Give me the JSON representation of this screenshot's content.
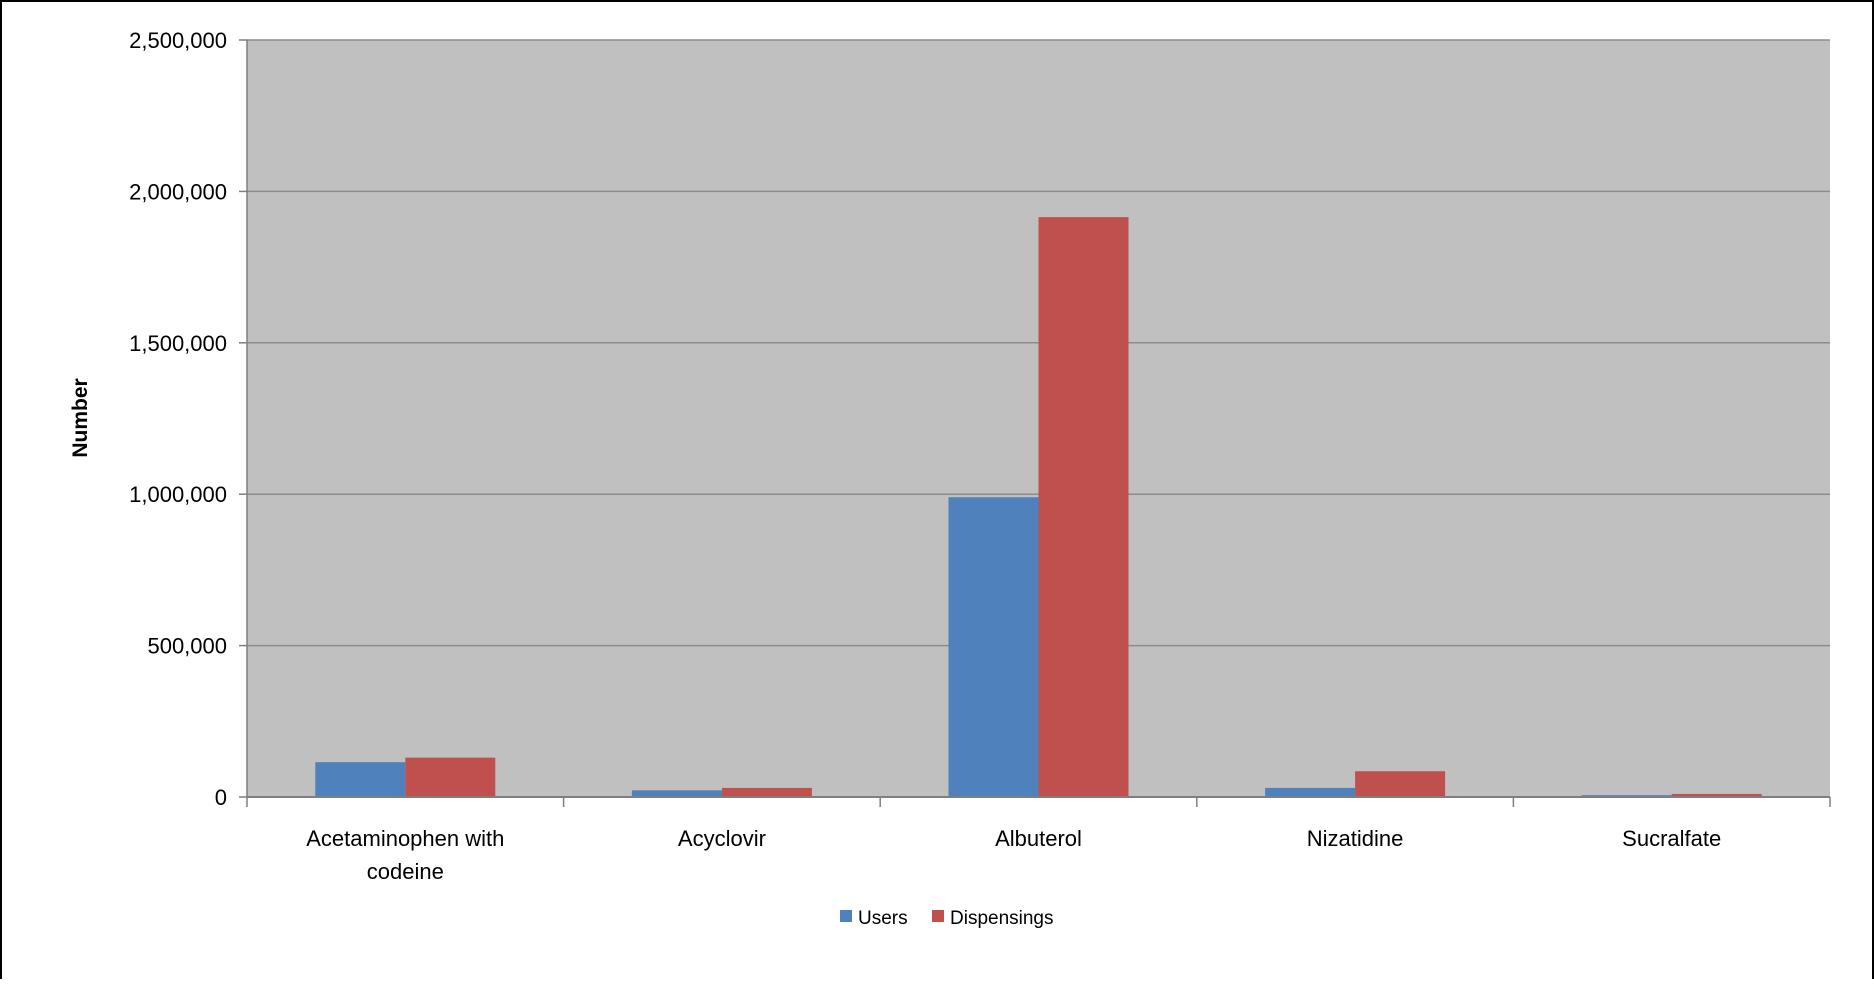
{
  "chart_data": {
    "type": "bar",
    "title": "",
    "xlabel": "",
    "ylabel": "Number",
    "ylim": [
      0,
      2500000
    ],
    "yticks": [
      0,
      500000,
      1000000,
      1500000,
      2000000,
      2500000
    ],
    "ytick_labels": [
      "0",
      "500,000",
      "1,000,000",
      "1,500,000",
      "2,000,000",
      "2,500,000"
    ],
    "categories": [
      [
        "Acetaminophen with",
        "codeine"
      ],
      [
        "Acyclovir"
      ],
      [
        "Albuterol"
      ],
      [
        "Nizatidine"
      ],
      [
        "Sucralfate"
      ]
    ],
    "series": [
      {
        "name": "Users",
        "color": "#4F81BD",
        "values": [
          115000,
          22000,
          990000,
          30000,
          6000
        ]
      },
      {
        "name": "Dispensings",
        "color": "#C0504D",
        "values": [
          130000,
          30000,
          1915000,
          85000,
          10000
        ]
      }
    ],
    "grid": true,
    "plot_background": "#C0C0C0",
    "legend_position": "bottom"
  }
}
